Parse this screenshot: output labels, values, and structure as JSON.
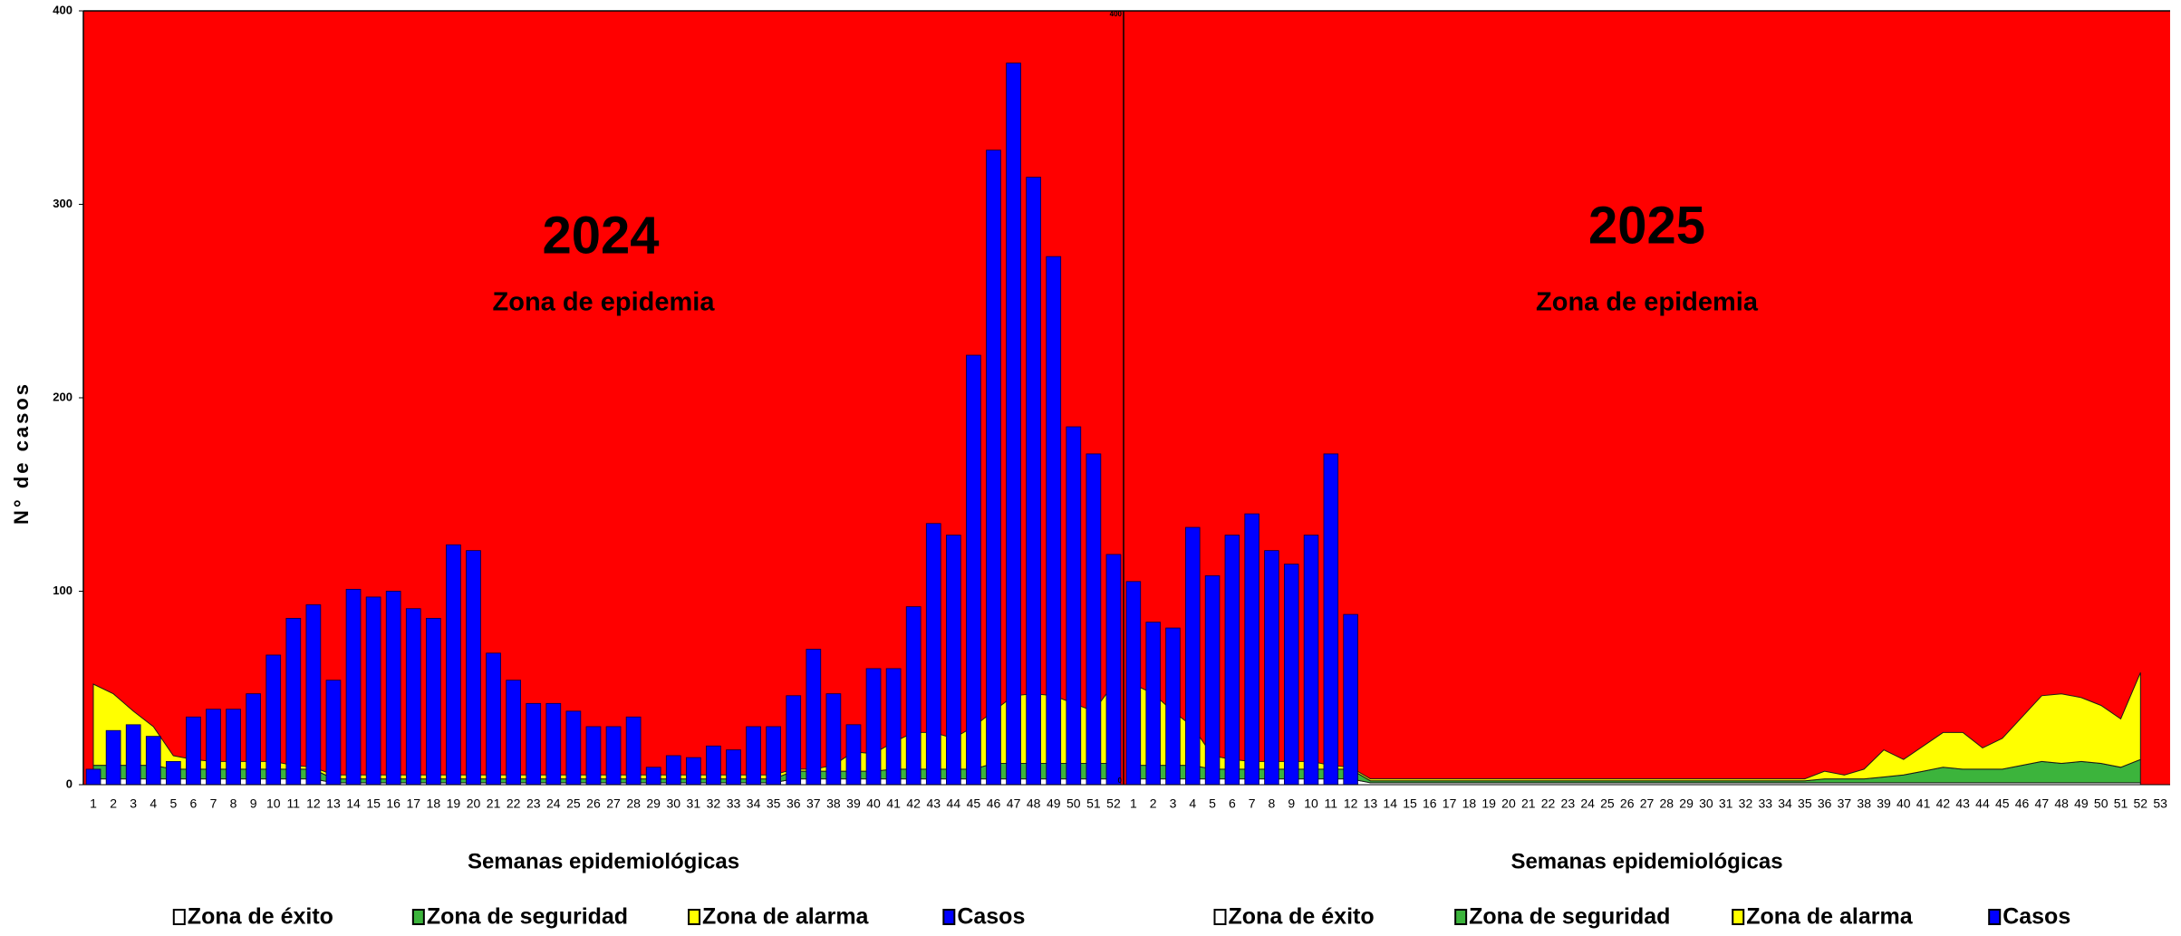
{
  "chart_data": [
    {
      "type": "bar",
      "title": "2024",
      "subtitle": "Zona de epidemia",
      "x_label": "Semanas epidemiológicas",
      "y_label": "N° de casos",
      "background_color": "#ff0000",
      "categories": [
        1,
        2,
        3,
        4,
        5,
        6,
        7,
        8,
        9,
        10,
        11,
        12,
        13,
        14,
        15,
        16,
        17,
        18,
        19,
        20,
        21,
        22,
        23,
        24,
        25,
        26,
        27,
        28,
        29,
        30,
        31,
        32,
        33,
        34,
        35,
        36,
        37,
        38,
        39,
        40,
        41,
        42,
        43,
        44,
        45,
        46,
        47,
        48,
        49,
        50,
        51,
        52
      ],
      "ylim": [
        0,
        400
      ],
      "yticks": [
        0,
        100,
        200,
        300,
        400
      ],
      "series": [
        {
          "name": "Zona de éxito",
          "type": "area",
          "color": "#ffffff",
          "values": [
            3,
            3,
            3,
            3,
            3,
            3,
            3,
            3,
            3,
            3,
            3,
            3,
            1,
            1,
            1,
            1,
            1,
            1,
            1,
            1,
            1,
            1,
            1,
            1,
            1,
            1,
            1,
            1,
            1,
            1,
            1,
            1,
            1,
            1,
            1,
            3,
            3,
            3,
            3,
            3,
            3,
            3,
            3,
            3,
            3,
            3,
            3,
            3,
            3,
            3,
            3,
            3
          ]
        },
        {
          "name": "Zona de seguridad",
          "type": "area",
          "color": "#3cb43c",
          "values": [
            7,
            7,
            7,
            7,
            5,
            5,
            5,
            5,
            5,
            5,
            5,
            5,
            2,
            2,
            2,
            2,
            2,
            2,
            2,
            2,
            2,
            2,
            2,
            2,
            2,
            2,
            2,
            2,
            2,
            2,
            2,
            2,
            2,
            2,
            2,
            4,
            4,
            4,
            4,
            4,
            5,
            5,
            5,
            5,
            5,
            8,
            8,
            8,
            8,
            8,
            8,
            8
          ]
        },
        {
          "name": "Zona de alarma",
          "type": "area",
          "color": "#ffff00",
          "values": [
            42,
            37,
            28,
            20,
            7,
            5,
            4,
            4,
            4,
            4,
            2,
            1,
            2,
            2,
            2,
            2,
            2,
            2,
            2,
            2,
            2,
            2,
            2,
            2,
            2,
            2,
            2,
            2,
            2,
            2,
            2,
            2,
            2,
            2,
            2,
            1,
            1,
            3,
            10,
            9,
            14,
            19,
            19,
            16,
            22,
            27,
            35,
            36,
            35,
            31,
            27,
            41
          ]
        },
        {
          "name": "Casos",
          "type": "bar",
          "color": "#0000ff",
          "values": [
            8,
            28,
            31,
            25,
            12,
            35,
            39,
            39,
            47,
            67,
            86,
            93,
            54,
            101,
            97,
            100,
            91,
            86,
            124,
            121,
            68,
            54,
            42,
            42,
            38,
            30,
            30,
            35,
            9,
            15,
            14,
            20,
            18,
            30,
            30,
            46,
            70,
            47,
            31,
            60,
            60,
            92,
            135,
            129,
            222,
            328,
            373,
            314,
            273,
            185,
            171,
            119
          ]
        }
      ]
    },
    {
      "type": "bar",
      "title": "2025",
      "subtitle": "Zona de epidemia",
      "x_label": "Semanas epidemiológicas",
      "background_color": "#ff0000",
      "categories": [
        1,
        2,
        3,
        4,
        5,
        6,
        7,
        8,
        9,
        10,
        11,
        12,
        13,
        14,
        15,
        16,
        17,
        18,
        19,
        20,
        21,
        22,
        23,
        24,
        25,
        26,
        27,
        28,
        29,
        30,
        31,
        32,
        33,
        34,
        35,
        36,
        37,
        38,
        39,
        40,
        41,
        42,
        43,
        44,
        45,
        46,
        47,
        48,
        49,
        50,
        51,
        52,
        53
      ],
      "ylim": [
        0,
        400
      ],
      "yticks": [
        0,
        400
      ],
      "series": [
        {
          "name": "Zona de éxito",
          "type": "area",
          "color": "#ffffff",
          "values": [
            3,
            3,
            3,
            3,
            3,
            3,
            3,
            3,
            3,
            3,
            3,
            3,
            1,
            1,
            1,
            1,
            1,
            1,
            1,
            1,
            1,
            1,
            1,
            1,
            1,
            1,
            1,
            1,
            1,
            1,
            1,
            1,
            1,
            1,
            1,
            1,
            1,
            1,
            1,
            1,
            1,
            1,
            1,
            1,
            1,
            1,
            1,
            1,
            1,
            1,
            1,
            1,
            null
          ]
        },
        {
          "name": "Zona de seguridad",
          "type": "area",
          "color": "#3cb43c",
          "values": [
            7,
            7,
            7,
            7,
            5,
            5,
            5,
            5,
            5,
            5,
            5,
            5,
            1,
            1,
            1,
            1,
            1,
            1,
            1,
            1,
            1,
            1,
            1,
            1,
            1,
            1,
            1,
            1,
            1,
            1,
            1,
            1,
            1,
            1,
            1,
            2,
            2,
            2,
            3,
            4,
            6,
            8,
            7,
            7,
            7,
            9,
            11,
            10,
            11,
            10,
            8,
            12,
            null
          ]
        },
        {
          "name": "Zona de alarma",
          "type": "area",
          "color": "#ffff00",
          "values": [
            42,
            37,
            28,
            20,
            7,
            5,
            4,
            4,
            4,
            4,
            2,
            1,
            1,
            1,
            1,
            1,
            1,
            1,
            1,
            1,
            1,
            1,
            1,
            1,
            1,
            1,
            1,
            1,
            1,
            1,
            1,
            1,
            1,
            1,
            1,
            4,
            2,
            5,
            14,
            8,
            13,
            18,
            19,
            11,
            16,
            25,
            34,
            36,
            33,
            30,
            25,
            45,
            null
          ]
        },
        {
          "name": "Casos",
          "type": "bar",
          "color": "#0000ff",
          "values": [
            105,
            84,
            81,
            133,
            108,
            129,
            140,
            121,
            114,
            129,
            171,
            88,
            null,
            null,
            null,
            null,
            null,
            null,
            null,
            null,
            null,
            null,
            null,
            null,
            null,
            null,
            null,
            null,
            null,
            null,
            null,
            null,
            null,
            null,
            null,
            null,
            null,
            null,
            null,
            null,
            null,
            null,
            null,
            null,
            null,
            null,
            null,
            null,
            null,
            null,
            null,
            null,
            null
          ]
        }
      ]
    }
  ]
}
